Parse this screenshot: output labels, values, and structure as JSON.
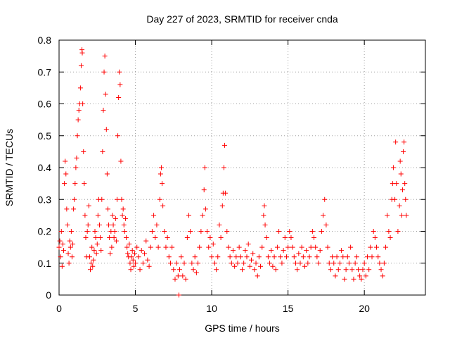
{
  "chart_data": {
    "type": "scatter",
    "title": "Day 227 of 2023, SRMTID for receiver cnda",
    "xlabel": "GPS time / hours",
    "ylabel": "SRMTID / TECUs",
    "xlim": [
      0,
      24
    ],
    "ylim": [
      0,
      0.8
    ],
    "xticks": [
      0,
      5,
      10,
      15,
      20
    ],
    "yticks": [
      0,
      0.1,
      0.2,
      0.3,
      0.4,
      0.5,
      0.6,
      0.7,
      0.8
    ],
    "xtick_labels": [
      "0",
      "5",
      "10",
      "15",
      "20"
    ],
    "ytick_labels": [
      "0",
      "0.1",
      "0.2",
      "0.3",
      "0.4",
      "0.5",
      "0.6",
      "0.7",
      "0.8"
    ],
    "grid": true,
    "marker": "+",
    "series_color": "#ff0000",
    "series": [
      {
        "name": "SRMTID",
        "points": [
          [
            0.0,
            0.15
          ],
          [
            0.05,
            0.17
          ],
          [
            0.1,
            0.12
          ],
          [
            0.15,
            0.2
          ],
          [
            0.2,
            0.09
          ],
          [
            0.25,
            0.16
          ],
          [
            0.3,
            0.14
          ],
          [
            0.35,
            0.35
          ],
          [
            0.4,
            0.42
          ],
          [
            0.45,
            0.38
          ],
          [
            0.5,
            0.27
          ],
          [
            0.55,
            0.22
          ],
          [
            0.6,
            0.13
          ],
          [
            0.65,
            0.1
          ],
          [
            0.7,
            0.17
          ],
          [
            0.75,
            0.15
          ],
          [
            0.8,
            0.2
          ],
          [
            0.85,
            0.12
          ],
          [
            0.9,
            0.16
          ],
          [
            0.95,
            0.27
          ],
          [
            1.0,
            0.3
          ],
          [
            1.05,
            0.35
          ],
          [
            1.1,
            0.4
          ],
          [
            1.15,
            0.43
          ],
          [
            1.2,
            0.5
          ],
          [
            1.25,
            0.55
          ],
          [
            1.3,
            0.58
          ],
          [
            1.35,
            0.6
          ],
          [
            1.4,
            0.65
          ],
          [
            1.45,
            0.72
          ],
          [
            1.5,
            0.77
          ],
          [
            1.52,
            0.76
          ],
          [
            1.55,
            0.6
          ],
          [
            1.6,
            0.45
          ],
          [
            1.65,
            0.35
          ],
          [
            1.7,
            0.25
          ],
          [
            1.75,
            0.18
          ],
          [
            1.8,
            0.12
          ],
          [
            1.85,
            0.2
          ],
          [
            1.9,
            0.22
          ],
          [
            1.95,
            0.28
          ],
          [
            2.0,
            0.12
          ],
          [
            2.05,
            0.08
          ],
          [
            2.1,
            0.1
          ],
          [
            2.15,
            0.15
          ],
          [
            2.2,
            0.09
          ],
          [
            2.25,
            0.11
          ],
          [
            2.3,
            0.14
          ],
          [
            2.35,
            0.2
          ],
          [
            2.4,
            0.18
          ],
          [
            2.45,
            0.13
          ],
          [
            2.5,
            0.16
          ],
          [
            2.55,
            0.25
          ],
          [
            2.6,
            0.3
          ],
          [
            2.65,
            0.22
          ],
          [
            2.7,
            0.18
          ],
          [
            2.75,
            0.14
          ],
          [
            2.8,
            0.3
          ],
          [
            2.85,
            0.45
          ],
          [
            2.9,
            0.58
          ],
          [
            2.95,
            0.7
          ],
          [
            3.0,
            0.75
          ],
          [
            3.05,
            0.63
          ],
          [
            3.1,
            0.52
          ],
          [
            3.15,
            0.38
          ],
          [
            3.2,
            0.27
          ],
          [
            3.25,
            0.22
          ],
          [
            3.3,
            0.18
          ],
          [
            3.35,
            0.13
          ],
          [
            3.4,
            0.2
          ],
          [
            3.45,
            0.15
          ],
          [
            3.5,
            0.25
          ],
          [
            3.55,
            0.22
          ],
          [
            3.6,
            0.18
          ],
          [
            3.65,
            0.2
          ],
          [
            3.7,
            0.24
          ],
          [
            3.75,
            0.17
          ],
          [
            3.8,
            0.3
          ],
          [
            3.85,
            0.5
          ],
          [
            3.9,
            0.62
          ],
          [
            3.95,
            0.7
          ],
          [
            4.0,
            0.66
          ],
          [
            4.05,
            0.42
          ],
          [
            4.1,
            0.3
          ],
          [
            4.15,
            0.25
          ],
          [
            4.2,
            0.27
          ],
          [
            4.25,
            0.22
          ],
          [
            4.3,
            0.2
          ],
          [
            4.35,
            0.24
          ],
          [
            4.4,
            0.18
          ],
          [
            4.45,
            0.15
          ],
          [
            4.5,
            0.13
          ],
          [
            4.55,
            0.12
          ],
          [
            4.6,
            0.16
          ],
          [
            4.65,
            0.1
          ],
          [
            4.7,
            0.08
          ],
          [
            4.75,
            0.12
          ],
          [
            4.8,
            0.14
          ],
          [
            4.85,
            0.11
          ],
          [
            4.9,
            0.09
          ],
          [
            4.95,
            0.13
          ],
          [
            5.0,
            0.1
          ],
          [
            5.1,
            0.15
          ],
          [
            5.2,
            0.12
          ],
          [
            5.3,
            0.08
          ],
          [
            5.4,
            0.14
          ],
          [
            5.5,
            0.1
          ],
          [
            5.6,
            0.13
          ],
          [
            5.7,
            0.17
          ],
          [
            5.8,
            0.11
          ],
          [
            5.9,
            0.09
          ],
          [
            6.0,
            0.15
          ],
          [
            6.1,
            0.2
          ],
          [
            6.2,
            0.25
          ],
          [
            6.3,
            0.18
          ],
          [
            6.4,
            0.22
          ],
          [
            6.5,
            0.15
          ],
          [
            6.6,
            0.3
          ],
          [
            6.65,
            0.38
          ],
          [
            6.7,
            0.4
          ],
          [
            6.75,
            0.35
          ],
          [
            6.8,
            0.28
          ],
          [
            6.9,
            0.2
          ],
          [
            7.0,
            0.15
          ],
          [
            7.1,
            0.18
          ],
          [
            7.2,
            0.12
          ],
          [
            7.3,
            0.1
          ],
          [
            7.4,
            0.15
          ],
          [
            7.5,
            0.08
          ],
          [
            7.6,
            0.05
          ],
          [
            7.7,
            0.1
          ],
          [
            7.8,
            0.06
          ],
          [
            7.85,
            0.0
          ],
          [
            7.9,
            0.08
          ],
          [
            8.0,
            0.12
          ],
          [
            8.1,
            0.06
          ],
          [
            8.2,
            0.1
          ],
          [
            8.3,
            0.05
          ],
          [
            8.4,
            0.18
          ],
          [
            8.5,
            0.25
          ],
          [
            8.6,
            0.2
          ],
          [
            8.7,
            0.1
          ],
          [
            8.8,
            0.08
          ],
          [
            8.9,
            0.12
          ],
          [
            9.0,
            0.07
          ],
          [
            9.1,
            0.1
          ],
          [
            9.2,
            0.15
          ],
          [
            9.3,
            0.2
          ],
          [
            9.4,
            0.25
          ],
          [
            9.5,
            0.33
          ],
          [
            9.55,
            0.4
          ],
          [
            9.6,
            0.27
          ],
          [
            9.7,
            0.2
          ],
          [
            9.8,
            0.15
          ],
          [
            9.9,
            0.18
          ],
          [
            10.0,
            0.12
          ],
          [
            10.1,
            0.16
          ],
          [
            10.2,
            0.1
          ],
          [
            10.3,
            0.08
          ],
          [
            10.4,
            0.12
          ],
          [
            10.5,
            0.22
          ],
          [
            10.6,
            0.18
          ],
          [
            10.7,
            0.28
          ],
          [
            10.75,
            0.32
          ],
          [
            10.8,
            0.4
          ],
          [
            10.85,
            0.47
          ],
          [
            10.9,
            0.32
          ],
          [
            11.0,
            0.2
          ],
          [
            11.1,
            0.15
          ],
          [
            11.2,
            0.12
          ],
          [
            11.3,
            0.1
          ],
          [
            11.4,
            0.14
          ],
          [
            11.5,
            0.09
          ],
          [
            11.6,
            0.12
          ],
          [
            11.7,
            0.1
          ],
          [
            11.8,
            0.15
          ],
          [
            11.9,
            0.12
          ],
          [
            12.0,
            0.08
          ],
          [
            12.1,
            0.1
          ],
          [
            12.2,
            0.14
          ],
          [
            12.3,
            0.12
          ],
          [
            12.4,
            0.16
          ],
          [
            12.5,
            0.09
          ],
          [
            12.6,
            0.11
          ],
          [
            12.7,
            0.13
          ],
          [
            12.8,
            0.08
          ],
          [
            12.9,
            0.1
          ],
          [
            13.0,
            0.06
          ],
          [
            13.1,
            0.12
          ],
          [
            13.2,
            0.09
          ],
          [
            13.3,
            0.15
          ],
          [
            13.4,
            0.25
          ],
          [
            13.45,
            0.28
          ],
          [
            13.5,
            0.22
          ],
          [
            13.6,
            0.18
          ],
          [
            13.7,
            0.12
          ],
          [
            13.8,
            0.1
          ],
          [
            13.9,
            0.14
          ],
          [
            14.0,
            0.09
          ],
          [
            14.1,
            0.12
          ],
          [
            14.2,
            0.08
          ],
          [
            14.3,
            0.15
          ],
          [
            14.4,
            0.2
          ],
          [
            14.5,
            0.12
          ],
          [
            14.6,
            0.1
          ],
          [
            14.7,
            0.14
          ],
          [
            14.8,
            0.18
          ],
          [
            14.9,
            0.12
          ],
          [
            15.0,
            0.15
          ],
          [
            15.1,
            0.2
          ],
          [
            15.2,
            0.18
          ],
          [
            15.3,
            0.15
          ],
          [
            15.4,
            0.12
          ],
          [
            15.5,
            0.1
          ],
          [
            15.6,
            0.08
          ],
          [
            15.7,
            0.13
          ],
          [
            15.8,
            0.1
          ],
          [
            15.9,
            0.15
          ],
          [
            16.0,
            0.12
          ],
          [
            16.1,
            0.09
          ],
          [
            16.2,
            0.14
          ],
          [
            16.3,
            0.1
          ],
          [
            16.4,
            0.12
          ],
          [
            16.5,
            0.15
          ],
          [
            16.6,
            0.2
          ],
          [
            16.7,
            0.18
          ],
          [
            16.8,
            0.15
          ],
          [
            16.9,
            0.12
          ],
          [
            17.0,
            0.1
          ],
          [
            17.1,
            0.14
          ],
          [
            17.2,
            0.2
          ],
          [
            17.3,
            0.25
          ],
          [
            17.4,
            0.3
          ],
          [
            17.5,
            0.22
          ],
          [
            17.6,
            0.15
          ],
          [
            17.7,
            0.1
          ],
          [
            17.8,
            0.08
          ],
          [
            17.9,
            0.12
          ],
          [
            18.0,
            0.1
          ],
          [
            18.1,
            0.06
          ],
          [
            18.2,
            0.12
          ],
          [
            18.3,
            0.08
          ],
          [
            18.4,
            0.1
          ],
          [
            18.5,
            0.14
          ],
          [
            18.6,
            0.12
          ],
          [
            18.7,
            0.05
          ],
          [
            18.8,
            0.08
          ],
          [
            18.9,
            0.12
          ],
          [
            19.0,
            0.1
          ],
          [
            19.1,
            0.15
          ],
          [
            19.2,
            0.08
          ],
          [
            19.3,
            0.05
          ],
          [
            19.4,
            0.1
          ],
          [
            19.5,
            0.12
          ],
          [
            19.6,
            0.08
          ],
          [
            19.7,
            0.06
          ],
          [
            19.8,
            0.05
          ],
          [
            19.9,
            0.08
          ],
          [
            20.0,
            0.1
          ],
          [
            20.1,
            0.06
          ],
          [
            20.2,
            0.12
          ],
          [
            20.3,
            0.08
          ],
          [
            20.4,
            0.15
          ],
          [
            20.5,
            0.12
          ],
          [
            20.6,
            0.2
          ],
          [
            20.7,
            0.18
          ],
          [
            20.8,
            0.15
          ],
          [
            20.9,
            0.12
          ],
          [
            21.0,
            0.1
          ],
          [
            21.1,
            0.08
          ],
          [
            21.2,
            0.06
          ],
          [
            21.3,
            0.1
          ],
          [
            21.4,
            0.15
          ],
          [
            21.5,
            0.25
          ],
          [
            21.6,
            0.2
          ],
          [
            21.7,
            0.18
          ],
          [
            21.8,
            0.3
          ],
          [
            21.85,
            0.35
          ],
          [
            21.9,
            0.4
          ],
          [
            22.0,
            0.3
          ],
          [
            22.05,
            0.48
          ],
          [
            22.1,
            0.35
          ],
          [
            22.2,
            0.2
          ],
          [
            22.3,
            0.28
          ],
          [
            22.35,
            0.42
          ],
          [
            22.4,
            0.38
          ],
          [
            22.45,
            0.25
          ],
          [
            22.5,
            0.33
          ],
          [
            22.55,
            0.45
          ],
          [
            22.6,
            0.48
          ],
          [
            22.65,
            0.35
          ],
          [
            22.7,
            0.3
          ],
          [
            22.75,
            0.25
          ]
        ]
      }
    ]
  }
}
